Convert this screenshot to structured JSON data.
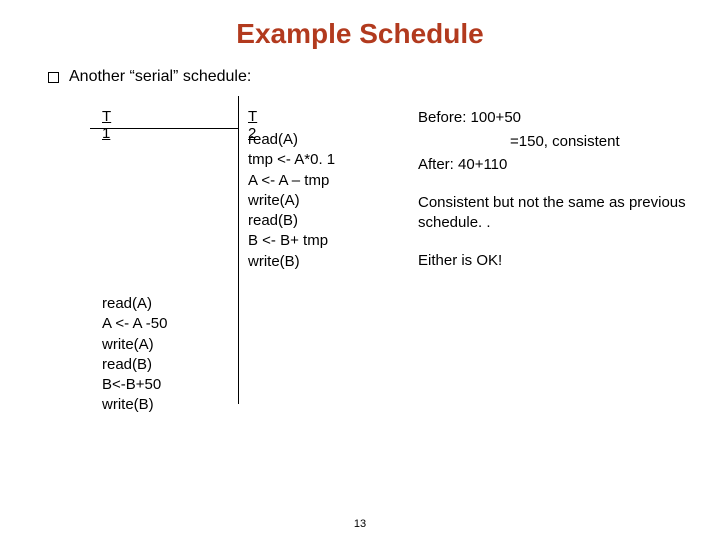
{
  "title": {
    "text": "Example Schedule",
    "color": "#b23a1e",
    "fontsize": 28
  },
  "bullet": {
    "text": "Another “serial” schedule:"
  },
  "schedule": {
    "t1": {
      "header": "T 1",
      "ops": "read(A)\nA <- A -50\nwrite(A)\nread(B)\nB<-B+50\nwrite(B)"
    },
    "t2": {
      "header": "T 2",
      "ops": "read(A)\ntmp <- A*0. 1\nA <- A – tmp\nwrite(A)\nread(B)\nB <- B+ tmp\nwrite(B)"
    }
  },
  "notes": {
    "before": "Before: 100+50",
    "eq": "=150, consistent",
    "after": "After: 40+110",
    "consistent": "Consistent but not the same as previous schedule. .",
    "either": "Either is OK!"
  },
  "page_number": "13",
  "colors": {
    "background": "#ffffff",
    "text": "#000000",
    "title": "#b23a1e"
  }
}
